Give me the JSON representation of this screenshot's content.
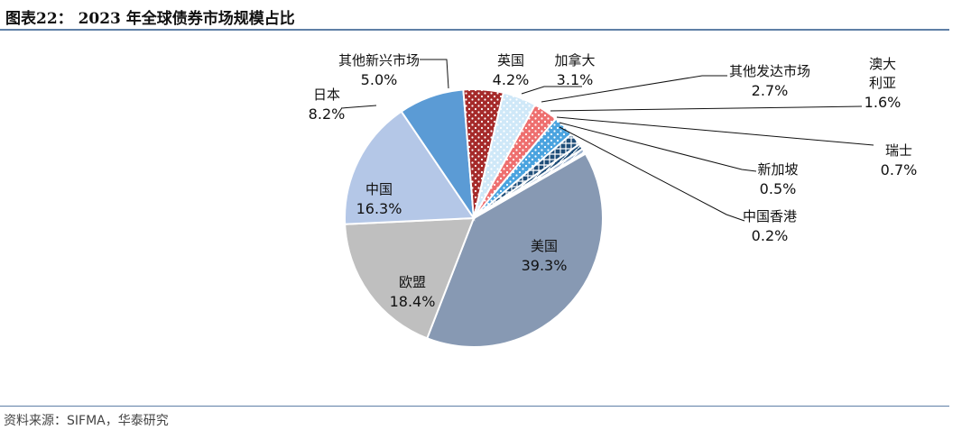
{
  "title": "图表22：  2023 年全球债券市场规模占比",
  "source": "资料来源：SIFMA，华泰研究",
  "chart_data": {
    "type": "pie",
    "title": "2023 年全球债券市场规模占比",
    "slices": [
      {
        "name": "美国",
        "value": 39.3,
        "label": "39.3%",
        "color": "#8799b3",
        "pattern": "solid"
      },
      {
        "name": "欧盟",
        "value": 18.4,
        "label": "18.4%",
        "color": "#bfbfbf",
        "pattern": "solid"
      },
      {
        "name": "中国",
        "value": 16.3,
        "label": "16.3%",
        "color": "#b4c7e7",
        "pattern": "solid"
      },
      {
        "name": "日本",
        "value": 8.2,
        "label": "8.2%",
        "color": "#5b9bd5",
        "pattern": "solid"
      },
      {
        "name": "其他新兴市场",
        "value": 5.0,
        "label": "5.0%",
        "color": "#a52a2a",
        "pattern": "dots"
      },
      {
        "name": "英国",
        "value": 4.2,
        "label": "4.2%",
        "color": "#cfe8f8",
        "pattern": "dots"
      },
      {
        "name": "加拿大",
        "value": 3.1,
        "label": "3.1%",
        "color": "#ee6f6f",
        "pattern": "dots"
      },
      {
        "name": "其他发达市场",
        "value": 2.7,
        "label": "2.7%",
        "color": "#4aa3df",
        "pattern": "dots"
      },
      {
        "name": "澳大利亚",
        "value": 1.6,
        "label": "1.6%",
        "color": "#1f4e79",
        "pattern": "cross"
      },
      {
        "name": "瑞士",
        "value": 0.7,
        "label": "0.7%",
        "color": "#1f4e79",
        "pattern": "hatch"
      },
      {
        "name": "新加坡",
        "value": 0.5,
        "label": "0.5%",
        "color": "#9ab0cc",
        "pattern": "hatch"
      },
      {
        "name": "中国香港",
        "value": 0.2,
        "label": "0.2%",
        "color": "#d9d9d9",
        "pattern": "solid"
      }
    ]
  }
}
